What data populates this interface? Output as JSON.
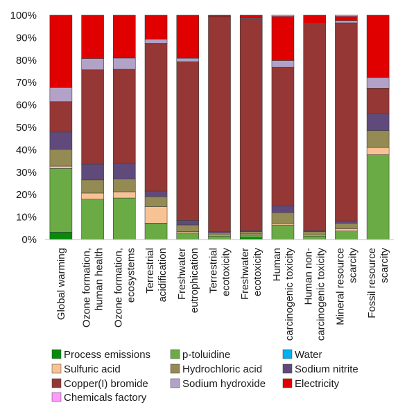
{
  "chart_data": {
    "type": "bar",
    "stacked": true,
    "normalized": true,
    "ylim": [
      0,
      100
    ],
    "y_ticks": [
      "0%",
      "10%",
      "20%",
      "30%",
      "40%",
      "50%",
      "60%",
      "70%",
      "80%",
      "90%",
      "100%"
    ],
    "grid": false,
    "legend_position": "bottom",
    "categories": [
      [
        "Global warming"
      ],
      [
        "Ozone formation,",
        "human health"
      ],
      [
        "Ozone formation,",
        "ecosystems"
      ],
      [
        "Terrestrial",
        "acidification"
      ],
      [
        "Freshwater",
        "eutrophication"
      ],
      [
        "Terrestrial",
        "ecotoxicity"
      ],
      [
        "Freshwater",
        "ecotoxicity"
      ],
      [
        "Human",
        "carcinogenic toxicity"
      ],
      [
        "Human non-",
        "carcinogenic toxicity"
      ],
      [
        "Mineral resource",
        "scarcity"
      ],
      [
        "Fossil resource",
        "scarcity"
      ]
    ],
    "series": [
      {
        "name": "Process emissions",
        "color": "#0a8a0a",
        "values": [
          3.3,
          0,
          0,
          0,
          0,
          0,
          0.9,
          0,
          0,
          0,
          0
        ]
      },
      {
        "name": "p-toluidine",
        "color": "#6aab46",
        "values": [
          28.4,
          18.0,
          18.5,
          7.3,
          3.0,
          1.5,
          1.2,
          6.3,
          1.5,
          3.8,
          37.8
        ]
      },
      {
        "name": "Water",
        "color": "#00b0f0",
        "values": [
          0,
          0,
          0,
          0,
          0,
          0,
          0,
          0,
          0,
          0,
          0
        ]
      },
      {
        "name": "Sulfuric acid",
        "color": "#f8c394",
        "values": [
          1.0,
          2.7,
          2.8,
          7.3,
          0.5,
          0.5,
          0.4,
          0.7,
          0.5,
          1.0,
          3.2
        ]
      },
      {
        "name": "Hydrochloric acid",
        "color": "#948a54",
        "values": [
          7.5,
          5.9,
          5.7,
          4.5,
          3.0,
          1.0,
          1.0,
          5.0,
          1.5,
          2.5,
          7.6
        ]
      },
      {
        "name": "Sodium nitrite",
        "color": "#604a7b",
        "values": [
          7.7,
          7.0,
          6.9,
          2.5,
          2.0,
          0.5,
          0.5,
          3.0,
          0.5,
          1.0,
          7.4
        ]
      },
      {
        "name": "Copper(I) bromide",
        "color": "#953735",
        "values": [
          13.6,
          42.1,
          42.0,
          65.9,
          70.8,
          95.7,
          94.5,
          61.8,
          92.2,
          88.3,
          11.5
        ]
      },
      {
        "name": "Sodium hydroxide",
        "color": "#b3a2c7",
        "values": [
          6.3,
          5.0,
          5.0,
          1.8,
          1.5,
          0.2,
          0.3,
          3.0,
          0.3,
          1.0,
          4.7
        ]
      },
      {
        "name": "Electricity",
        "color": "#e00000",
        "values": [
          32.2,
          19.3,
          19.1,
          10.7,
          19.2,
          0.6,
          1.2,
          19.7,
          3.5,
          1.9,
          27.8
        ]
      },
      {
        "name": "Chemicals factory",
        "color": "#ff99ff",
        "values": [
          0,
          0,
          0,
          0,
          0,
          0,
          0,
          0.5,
          0,
          0.5,
          0
        ]
      }
    ]
  }
}
